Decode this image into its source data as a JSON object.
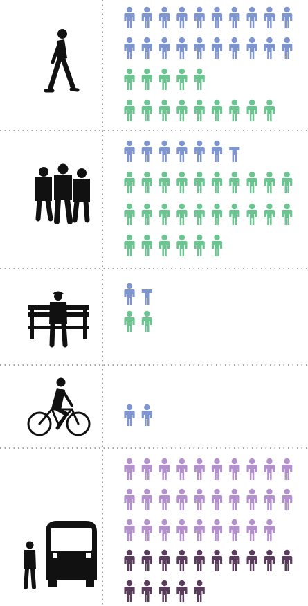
{
  "chart_data": {
    "type": "pictogram",
    "title": "",
    "colors": {
      "blue": "#7f95cf",
      "green": "#6cc590",
      "lavender": "#b391cd",
      "plum": "#5a3d5c",
      "divider": "#888888",
      "silhouette": "#111111"
    },
    "grid": true,
    "rows": [
      {
        "category": "walking-person",
        "icon": "walking-person-icon",
        "lines": [
          {
            "color": "blue",
            "count": 10,
            "cut": false
          },
          {
            "color": "blue",
            "count": 10,
            "cut": false
          },
          {
            "color": "green",
            "count": 5,
            "cut": false
          },
          {
            "color": "green",
            "count": 9,
            "cut": false
          }
        ]
      },
      {
        "category": "group-of-people",
        "icon": "group-of-people-icon",
        "lines": [
          {
            "color": "blue",
            "count": 7,
            "cut": true
          },
          {
            "color": "green",
            "count": 10,
            "cut": false
          },
          {
            "color": "green",
            "count": 10,
            "cut": false
          },
          {
            "color": "green",
            "count": 6,
            "cut": false
          }
        ]
      },
      {
        "category": "person-on-bench",
        "icon": "person-on-bench-icon",
        "lines": [
          {
            "color": "blue",
            "count": 2,
            "cut": true
          },
          {
            "color": "green",
            "count": 2,
            "cut": false
          }
        ]
      },
      {
        "category": "cyclist",
        "icon": "cyclist-icon",
        "lines": [
          {
            "color": "blue",
            "count": 2,
            "cut": false
          }
        ]
      },
      {
        "category": "bus-and-passenger",
        "icon": "bus-and-passenger-icon",
        "lines": [
          {
            "color": "lavender",
            "count": 10,
            "cut": false
          },
          {
            "color": "lavender",
            "count": 10,
            "cut": false
          },
          {
            "color": "lavender",
            "count": 9,
            "cut": false
          },
          {
            "color": "plum",
            "count": 10,
            "cut": false
          },
          {
            "color": "plum",
            "count": 5,
            "cut": false
          }
        ]
      }
    ]
  }
}
